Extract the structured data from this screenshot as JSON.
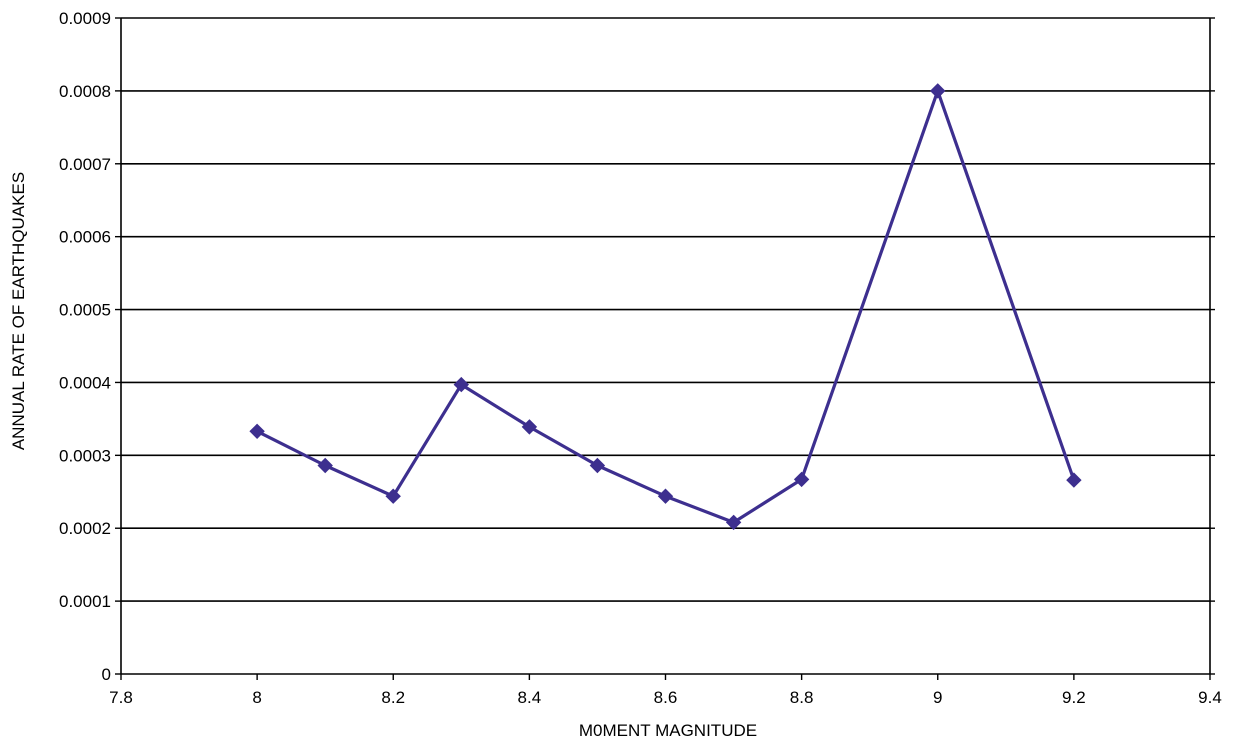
{
  "chart_data": {
    "type": "line",
    "title": "",
    "xlabel": "M0MENT MAGNITUDE",
    "ylabel": "ANNUAL RATE OF EARTHQUAKES",
    "xlim": [
      7.8,
      9.4
    ],
    "ylim": [
      0,
      0.0009
    ],
    "x_ticks": [
      7.8,
      8,
      8.2,
      8.4,
      8.6,
      8.8,
      9,
      9.2,
      9.4
    ],
    "x_tick_labels": [
      "7.8",
      "8",
      "8.2",
      "8.4",
      "8.6",
      "8.8",
      "9",
      "9.2",
      "9.4"
    ],
    "y_ticks": [
      0,
      0.0001,
      0.0002,
      0.0003,
      0.0004,
      0.0005,
      0.0006,
      0.0007,
      0.0008,
      0.0009
    ],
    "y_tick_labels": [
      "0",
      "0.0001",
      "0.0002",
      "0.0003",
      "0.0004",
      "0.0005",
      "0.0006",
      "0.0007",
      "0.0008",
      "0.0009"
    ],
    "grid": "horizontal",
    "legend": "none",
    "series": [
      {
        "color": "#3d2f8f",
        "marker": "diamond",
        "points": [
          {
            "x": 8.0,
            "y": 0.000333
          },
          {
            "x": 8.1,
            "y": 0.000286
          },
          {
            "x": 8.2,
            "y": 0.000244
          },
          {
            "x": 8.3,
            "y": 0.000397
          },
          {
            "x": 8.4,
            "y": 0.000339
          },
          {
            "x": 8.5,
            "y": 0.000286
          },
          {
            "x": 8.6,
            "y": 0.000244
          },
          {
            "x": 8.7,
            "y": 0.000208
          },
          {
            "x": 8.8,
            "y": 0.000267
          },
          {
            "x": 9.0,
            "y": 0.0008
          },
          {
            "x": 9.2,
            "y": 0.000266
          }
        ]
      }
    ]
  }
}
